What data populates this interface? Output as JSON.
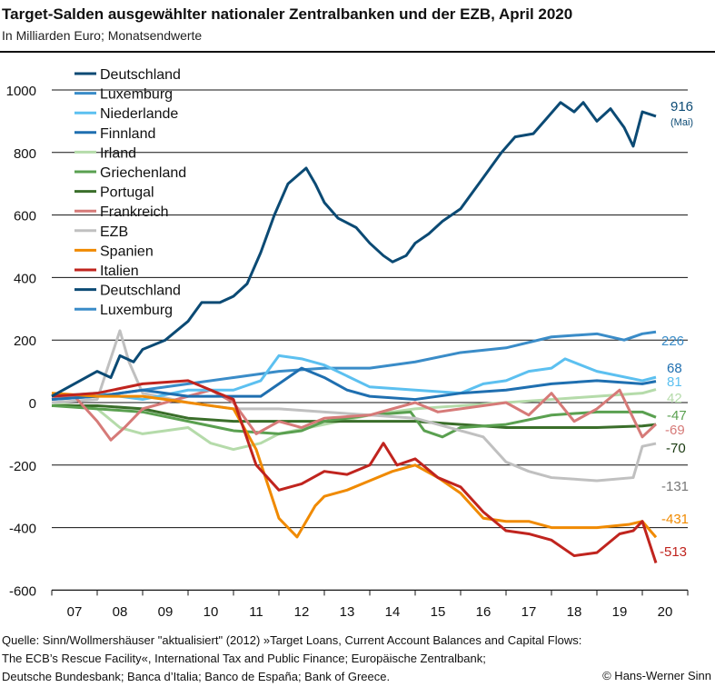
{
  "title": "Target-Salden ausgewählter nationaler Zentralbanken und der EZB, April 2020",
  "subtitle": "In Milliarden Euro; Monatsendwerte",
  "source": [
    "Quelle: Sinn/Wollmershäuser \"aktualisiert\" (2012) »Target Loans, Current Account Balances and Capital Flows:",
    "The ECB’s Rescue Facility«,  International Tax and Public Finance; Europäische Zentralbank;",
    "Deutsche Bundesbank; Banca d’Italia; Banco de España; Bank of Greece."
  ],
  "copyright": "© Hans-Werner Sinn",
  "chart_data": {
    "type": "line",
    "xlabel": "",
    "ylabel": "",
    "ylim": [
      -600,
      1000
    ],
    "xlim": [
      2007,
      2020.5
    ],
    "grid": true,
    "legend": "top-left",
    "yticks": [
      1000,
      800,
      600,
      400,
      200,
      0,
      -200,
      -400,
      -600
    ],
    "yticklabels": [
      "1000",
      "800",
      "600",
      "400",
      "200",
      "0",
      "-200",
      "-400",
      "-600"
    ],
    "xticklabels": [
      "07",
      "08",
      "09",
      "10",
      "11",
      "12",
      "13",
      "14",
      "15",
      "16",
      "17",
      "18",
      "19",
      "20"
    ],
    "legend_entries": [
      {
        "name": "Deutschland",
        "color": "#0b4a74"
      },
      {
        "name": "Luxemburg",
        "color": "#3a8cc8"
      },
      {
        "name": "Niederlande",
        "color": "#5cc0f0"
      },
      {
        "name": "Finnland",
        "color": "#1f6fb0"
      },
      {
        "name": "Irland",
        "color": "#b5dbaa"
      },
      {
        "name": "Griechenland",
        "color": "#5aa050"
      },
      {
        "name": "Portugal",
        "color": "#3a6e2a"
      },
      {
        "name": "Frankreich",
        "color": "#d67a78"
      },
      {
        "name": "EZB",
        "color": "#c0c0c0"
      },
      {
        "name": "Spanien",
        "color": "#f08a00"
      },
      {
        "name": "Italien",
        "color": "#c0241e"
      },
      {
        "name": "Deutschland",
        "color": "#0b4a74"
      },
      {
        "name": "Luxemburg",
        "color": "#3a8cc8"
      }
    ],
    "series": [
      {
        "name": "Luxemburg",
        "color": "#3a8cc8",
        "end_label": "226",
        "points": [
          [
            2007,
            10
          ],
          [
            2008,
            20
          ],
          [
            2009,
            40
          ],
          [
            2010,
            60
          ],
          [
            2011,
            80
          ],
          [
            2012,
            100
          ],
          [
            2013,
            110
          ],
          [
            2014,
            110
          ],
          [
            2015,
            130
          ],
          [
            2016,
            160
          ],
          [
            2017,
            175
          ],
          [
            2018,
            210
          ],
          [
            2019,
            220
          ],
          [
            2019.6,
            200
          ],
          [
            2020,
            220
          ],
          [
            2020.3,
            226
          ]
        ]
      },
      {
        "name": "Irland",
        "color": "#b5dbaa",
        "end_label": "42",
        "points": [
          [
            2007,
            0
          ],
          [
            2008,
            -20
          ],
          [
            2008.5,
            -80
          ],
          [
            2009,
            -100
          ],
          [
            2009.5,
            -90
          ],
          [
            2010,
            -80
          ],
          [
            2010.5,
            -130
          ],
          [
            2011,
            -150
          ],
          [
            2011.6,
            -130
          ],
          [
            2012,
            -100
          ],
          [
            2013,
            -70
          ],
          [
            2014,
            -40
          ],
          [
            2015,
            -20
          ],
          [
            2016,
            -10
          ],
          [
            2017,
            0
          ],
          [
            2018,
            10
          ],
          [
            2019,
            20
          ],
          [
            2020,
            30
          ],
          [
            2020.3,
            42
          ]
        ]
      },
      {
        "name": "Portugal",
        "color": "#3a6e2a",
        "end_label": "-70",
        "points": [
          [
            2007,
            -10
          ],
          [
            2008,
            -10
          ],
          [
            2009,
            -20
          ],
          [
            2010,
            -50
          ],
          [
            2011,
            -60
          ],
          [
            2012,
            -60
          ],
          [
            2013,
            -60
          ],
          [
            2014,
            -60
          ],
          [
            2015,
            -60
          ],
          [
            2016,
            -70
          ],
          [
            2017,
            -80
          ],
          [
            2018,
            -80
          ],
          [
            2019,
            -80
          ],
          [
            2020,
            -75
          ],
          [
            2020.3,
            -70
          ]
        ]
      },
      {
        "name": "Griechenland",
        "color": "#5aa050",
        "end_label": "-47",
        "points": [
          [
            2007,
            -10
          ],
          [
            2008,
            -20
          ],
          [
            2009,
            -30
          ],
          [
            2010,
            -60
          ],
          [
            2011,
            -90
          ],
          [
            2012,
            -100
          ],
          [
            2012.5,
            -90
          ],
          [
            2013,
            -60
          ],
          [
            2014,
            -40
          ],
          [
            2014.9,
            -30
          ],
          [
            2015.2,
            -90
          ],
          [
            2015.6,
            -110
          ],
          [
            2016,
            -80
          ],
          [
            2017,
            -70
          ],
          [
            2018,
            -40
          ],
          [
            2019,
            -30
          ],
          [
            2020,
            -30
          ],
          [
            2020.3,
            -47
          ]
        ]
      },
      {
        "name": "EZB",
        "color": "#c0c0c0",
        "end_label": "-131",
        "points": [
          [
            2007,
            0
          ],
          [
            2008,
            10
          ],
          [
            2008.5,
            230
          ],
          [
            2008.7,
            130
          ],
          [
            2009,
            30
          ],
          [
            2010,
            0
          ],
          [
            2011,
            -20
          ],
          [
            2012,
            -20
          ],
          [
            2013,
            -30
          ],
          [
            2014,
            -40
          ],
          [
            2015,
            -50
          ],
          [
            2016,
            -90
          ],
          [
            2016.5,
            -110
          ],
          [
            2017,
            -190
          ],
          [
            2017.5,
            -220
          ],
          [
            2018,
            -240
          ],
          [
            2019,
            -250
          ],
          [
            2019.8,
            -240
          ],
          [
            2020,
            -140
          ],
          [
            2020.3,
            -131
          ]
        ]
      },
      {
        "name": "Frankreich",
        "color": "#d67a78",
        "end_label": "-69",
        "points": [
          [
            2007,
            10
          ],
          [
            2007.5,
            20
          ],
          [
            2008,
            -60
          ],
          [
            2008.3,
            -120
          ],
          [
            2008.6,
            -80
          ],
          [
            2009,
            -20
          ],
          [
            2009.5,
            0
          ],
          [
            2010,
            20
          ],
          [
            2010.5,
            40
          ],
          [
            2011,
            0
          ],
          [
            2011.5,
            -100
          ],
          [
            2012,
            -60
          ],
          [
            2012.5,
            -80
          ],
          [
            2013,
            -50
          ],
          [
            2014,
            -40
          ],
          [
            2014.5,
            -20
          ],
          [
            2015,
            0
          ],
          [
            2015.5,
            -30
          ],
          [
            2016,
            -20
          ],
          [
            2017,
            0
          ],
          [
            2017.5,
            -40
          ],
          [
            2018,
            30
          ],
          [
            2018.5,
            -60
          ],
          [
            2019,
            -20
          ],
          [
            2019.5,
            40
          ],
          [
            2020,
            -110
          ],
          [
            2020.3,
            -69
          ]
        ]
      },
      {
        "name": "Niederlande",
        "color": "#5cc0f0",
        "end_label": "81",
        "points": [
          [
            2007,
            20
          ],
          [
            2008,
            30
          ],
          [
            2009,
            10
          ],
          [
            2010,
            40
          ],
          [
            2011,
            40
          ],
          [
            2011.6,
            70
          ],
          [
            2012,
            150
          ],
          [
            2012.5,
            140
          ],
          [
            2013,
            120
          ],
          [
            2014,
            50
          ],
          [
            2015,
            40
          ],
          [
            2016,
            30
          ],
          [
            2016.5,
            60
          ],
          [
            2017,
            70
          ],
          [
            2017.5,
            100
          ],
          [
            2018,
            110
          ],
          [
            2018.3,
            140
          ],
          [
            2019,
            100
          ],
          [
            2020,
            70
          ],
          [
            2020.3,
            81
          ]
        ]
      },
      {
        "name": "Finnland",
        "color": "#1f6fb0",
        "end_label": "68",
        "points": [
          [
            2007,
            10
          ],
          [
            2008,
            20
          ],
          [
            2009,
            40
          ],
          [
            2010,
            20
          ],
          [
            2011,
            20
          ],
          [
            2011.6,
            20
          ],
          [
            2012,
            60
          ],
          [
            2012.5,
            110
          ],
          [
            2013,
            80
          ],
          [
            2013.5,
            40
          ],
          [
            2014,
            20
          ],
          [
            2015,
            10
          ],
          [
            2016,
            30
          ],
          [
            2017,
            40
          ],
          [
            2018,
            60
          ],
          [
            2019,
            70
          ],
          [
            2020,
            60
          ],
          [
            2020.3,
            68
          ]
        ]
      },
      {
        "name": "Spanien",
        "color": "#f08a00",
        "end_label": "-431",
        "points": [
          [
            2007,
            30
          ],
          [
            2008,
            20
          ],
          [
            2009,
            20
          ],
          [
            2010,
            0
          ],
          [
            2011,
            -20
          ],
          [
            2011.5,
            -150
          ],
          [
            2012,
            -370
          ],
          [
            2012.4,
            -430
          ],
          [
            2012.8,
            -330
          ],
          [
            2013,
            -300
          ],
          [
            2013.5,
            -280
          ],
          [
            2014,
            -250
          ],
          [
            2014.5,
            -220
          ],
          [
            2015,
            -200
          ],
          [
            2015.5,
            -240
          ],
          [
            2016,
            -290
          ],
          [
            2016.5,
            -370
          ],
          [
            2017,
            -380
          ],
          [
            2017.5,
            -380
          ],
          [
            2018,
            -400
          ],
          [
            2018.5,
            -400
          ],
          [
            2019,
            -400
          ],
          [
            2019.7,
            -390
          ],
          [
            2020,
            -380
          ],
          [
            2020.3,
            -431
          ]
        ]
      },
      {
        "name": "Italien",
        "color": "#c0241e",
        "end_label": "-513",
        "points": [
          [
            2007,
            20
          ],
          [
            2008,
            30
          ],
          [
            2009,
            60
          ],
          [
            2010,
            70
          ],
          [
            2010.5,
            40
          ],
          [
            2011,
            10
          ],
          [
            2011.5,
            -200
          ],
          [
            2012,
            -280
          ],
          [
            2012.5,
            -260
          ],
          [
            2013,
            -220
          ],
          [
            2013.5,
            -230
          ],
          [
            2014,
            -200
          ],
          [
            2014.3,
            -130
          ],
          [
            2014.6,
            -200
          ],
          [
            2015,
            -180
          ],
          [
            2015.5,
            -240
          ],
          [
            2016,
            -270
          ],
          [
            2016.5,
            -350
          ],
          [
            2017,
            -410
          ],
          [
            2017.5,
            -420
          ],
          [
            2018,
            -440
          ],
          [
            2018.5,
            -490
          ],
          [
            2019,
            -480
          ],
          [
            2019.5,
            -420
          ],
          [
            2019.8,
            -410
          ],
          [
            2020,
            -380
          ],
          [
            2020.3,
            -513
          ]
        ]
      },
      {
        "name": "Deutschland",
        "color": "#0b4a74",
        "end_label": "916",
        "end_note": "(Mai)",
        "points": [
          [
            2007,
            20
          ],
          [
            2007.5,
            60
          ],
          [
            2008,
            100
          ],
          [
            2008.3,
            80
          ],
          [
            2008.5,
            150
          ],
          [
            2008.8,
            130
          ],
          [
            2009,
            170
          ],
          [
            2009.5,
            200
          ],
          [
            2010,
            260
          ],
          [
            2010.3,
            320
          ],
          [
            2010.7,
            320
          ],
          [
            2011,
            340
          ],
          [
            2011.3,
            380
          ],
          [
            2011.6,
            480
          ],
          [
            2011.9,
            600
          ],
          [
            2012.2,
            700
          ],
          [
            2012.6,
            750
          ],
          [
            2012.8,
            700
          ],
          [
            2013,
            640
          ],
          [
            2013.3,
            590
          ],
          [
            2013.7,
            560
          ],
          [
            2014,
            510
          ],
          [
            2014.3,
            470
          ],
          [
            2014.5,
            450
          ],
          [
            2014.8,
            470
          ],
          [
            2015,
            510
          ],
          [
            2015.3,
            540
          ],
          [
            2015.6,
            580
          ],
          [
            2016,
            620
          ],
          [
            2016.5,
            720
          ],
          [
            2016.9,
            800
          ],
          [
            2017.2,
            850
          ],
          [
            2017.6,
            860
          ],
          [
            2017.9,
            910
          ],
          [
            2018.2,
            960
          ],
          [
            2018.5,
            930
          ],
          [
            2018.7,
            960
          ],
          [
            2019,
            900
          ],
          [
            2019.3,
            940
          ],
          [
            2019.6,
            880
          ],
          [
            2019.8,
            820
          ],
          [
            2020,
            930
          ],
          [
            2020.3,
            916
          ]
        ]
      }
    ]
  }
}
